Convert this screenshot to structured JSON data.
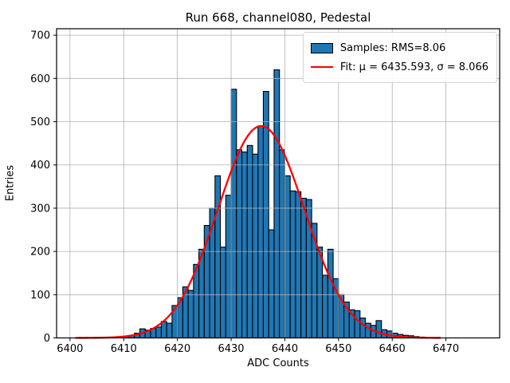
{
  "title": "Run 668, channel080, Pedestal",
  "axes": {
    "xlabel": "ADC Counts",
    "ylabel": "Entries",
    "xticks": [
      6400,
      6410,
      6420,
      6430,
      6440,
      6450,
      6460,
      6470
    ],
    "yticks": [
      0,
      100,
      200,
      300,
      400,
      500,
      600,
      700
    ]
  },
  "legend": {
    "samples_label": "Samples: RMS=8.06",
    "fit_label": "Fit: μ = 6435.593, σ = 8.066"
  },
  "colors": {
    "bar_fill": "#1f77b4",
    "bar_edge": "#000000",
    "fit_line": "#ff0000",
    "grid": "#b0b0b0",
    "spine": "#000000",
    "background": "#ffffff"
  },
  "chart_data": {
    "type": "bar",
    "subtype": "histogram",
    "title": "Run 668, channel080, Pedestal",
    "xlabel": "ADC Counts",
    "ylabel": "Entries",
    "xlim": [
      6397.5,
      6480
    ],
    "ylim": [
      0,
      715
    ],
    "grid": true,
    "legend_position": "upper right",
    "histogram": {
      "name": "Samples",
      "rms": 8.06,
      "bin_start": 6410,
      "bin_width": 1,
      "counts": [
        3,
        6,
        11,
        21,
        18,
        22,
        25,
        38,
        34,
        75,
        93,
        118,
        110,
        170,
        205,
        260,
        300,
        375,
        210,
        330,
        575,
        435,
        430,
        445,
        425,
        490,
        570,
        250,
        620,
        435,
        375,
        340,
        338,
        323,
        320,
        265,
        210,
        145,
        205,
        137,
        100,
        83,
        65,
        63,
        46,
        34,
        29,
        40,
        19,
        16,
        11,
        8,
        6,
        5,
        3,
        2
      ]
    },
    "fit": {
      "name": "Fit",
      "shape": "gaussian",
      "mu": 6435.593,
      "sigma": 8.066,
      "amplitude": 490,
      "x_range": [
        6401,
        6469
      ]
    }
  }
}
